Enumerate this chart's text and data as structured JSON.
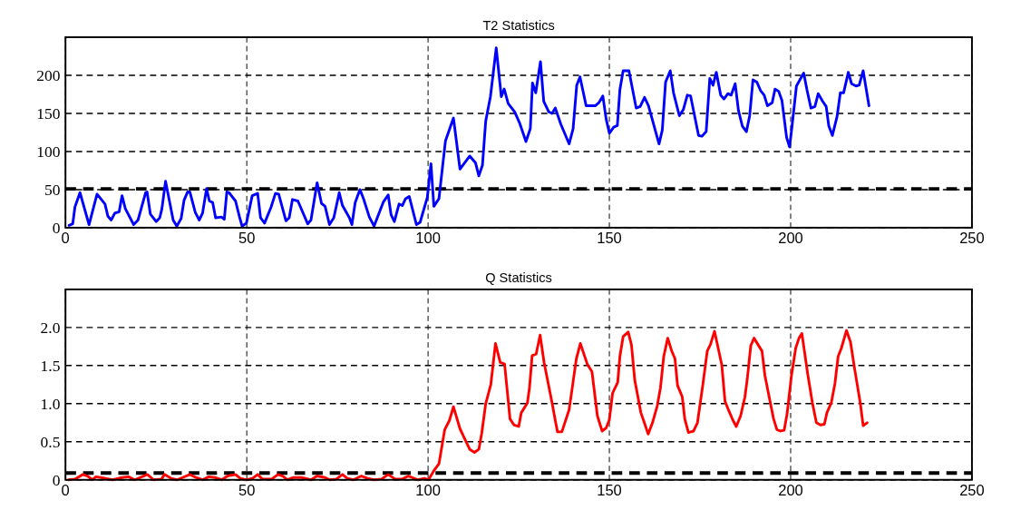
{
  "chart_data": [
    {
      "type": "line",
      "title": "T2 Statistics",
      "xlim": [
        0,
        250
      ],
      "xticks": [
        0,
        50,
        100,
        150,
        200,
        250
      ],
      "ylim": [
        0,
        250
      ],
      "yticks": [
        0,
        50,
        100,
        150,
        200
      ],
      "grid": true,
      "line_style": "solid",
      "marker": "none",
      "ref_lines": [
        {
          "axis": "y",
          "value": 51,
          "color": "#000000",
          "line_style": "dashed"
        }
      ],
      "series": [
        {
          "color": "#0000ff",
          "x": [
            1,
            2,
            2.6,
            4,
            6.5,
            8.7,
            10.9,
            11.7,
            12.6,
            13.6,
            14.8,
            15.6,
            16.5,
            18.8,
            20,
            22.1,
            22.5,
            23.4,
            25,
            26,
            26.6,
            27.6,
            29.7,
            30.7,
            31.9,
            32.7,
            33.7,
            34.3,
            35.8,
            36.9,
            37.8,
            38.9,
            39.7,
            40.6,
            41.4,
            43,
            43.8,
            44.5,
            45.1,
            46.9,
            48,
            48.7,
            49.9,
            51.5,
            53,
            53.8,
            54.9,
            56.7,
            57.9,
            58.8,
            60.8,
            61.7,
            62.6,
            64.1,
            66.8,
            67.7,
            69.4,
            70.6,
            71.6,
            72.8,
            74,
            75.5,
            76.4,
            78.3,
            79,
            79.9,
            81.2,
            82.2,
            83.8,
            85.1,
            87.7,
            89,
            89.8,
            90.7,
            92,
            92.9,
            93.8,
            94.8,
            96.8,
            97.8,
            99.8,
            100.8,
            101.6,
            103,
            104.8,
            107,
            108.8,
            111.5,
            113.1,
            114,
            115,
            115.9,
            117.2,
            118.8,
            120.2,
            121,
            122.1,
            123.9,
            125.2,
            127,
            128.2,
            128.8,
            129.7,
            131,
            131.9,
            133.3,
            134.2,
            135.1,
            136.6,
            138.9,
            140,
            141,
            141.9,
            143.6,
            146.1,
            147.1,
            148.2,
            149.1,
            150,
            151.2,
            152.2,
            152.9,
            153.8,
            155.4,
            157.4,
            158.5,
            159.7,
            160.8,
            163.7,
            164.6,
            165.5,
            166.8,
            167.7,
            169.3,
            170.4,
            171.5,
            172.4,
            174.6,
            175.5,
            176.7,
            177.7,
            178.6,
            179.5,
            180.7,
            181.6,
            182.7,
            183.6,
            184.7,
            185.6,
            186.7,
            187.8,
            188.7,
            189.6,
            190.7,
            191.7,
            192.7,
            193.6,
            194.9,
            195.7,
            196.7,
            197.6,
            198.9,
            199.7,
            200.3,
            201.6,
            203.6,
            204.5,
            205.6,
            206.7,
            207.6,
            208.8,
            209.8,
            210.5,
            211.5,
            212.8,
            213.7,
            214.6,
            215.9,
            216.8,
            218,
            218.9,
            220,
            221.6
          ],
          "values": [
            3,
            5,
            27,
            46,
            4,
            44,
            31,
            15,
            10,
            19,
            21,
            42,
            25,
            4,
            10,
            46,
            47,
            18,
            8,
            13,
            25,
            61,
            10,
            2,
            12,
            36,
            47,
            47,
            20,
            10,
            19,
            51,
            35,
            33,
            13,
            14,
            11,
            47,
            46,
            35,
            14,
            2,
            6,
            42,
            45,
            13,
            6,
            27,
            45,
            44,
            9,
            13,
            37,
            35,
            5,
            10,
            59,
            32,
            28,
            4,
            13,
            46,
            29,
            13,
            4,
            33,
            50,
            38,
            14,
            2,
            34,
            43,
            17,
            8,
            31,
            29,
            38,
            41,
            4,
            7,
            40,
            84,
            28,
            38,
            114,
            144,
            77,
            94,
            85,
            68,
            82,
            140,
            172,
            236,
            172,
            182,
            163,
            152,
            138,
            113,
            130,
            190,
            177,
            218,
            166,
            152,
            150,
            157,
            136,
            110,
            130,
            187,
            198,
            160,
            160,
            164,
            173,
            143,
            124,
            132,
            134,
            181,
            206,
            206,
            157,
            159,
            171,
            160,
            110,
            128,
            191,
            206,
            177,
            147,
            155,
            174,
            173,
            121,
            120,
            126,
            196,
            187,
            204,
            174,
            169,
            176,
            174,
            189,
            154,
            133,
            126,
            147,
            194,
            191,
            180,
            174,
            160,
            164,
            182,
            179,
            167,
            118,
            106,
            130,
            186,
            203,
            181,
            157,
            159,
            176,
            166,
            159,
            134,
            121,
            146,
            177,
            177,
            204,
            189,
            186,
            187,
            206,
            160
          ]
        }
      ]
    },
    {
      "type": "line",
      "title": "Q Statistics",
      "xlim": [
        0,
        250
      ],
      "xticks": [
        0,
        50,
        100,
        150,
        200,
        250
      ],
      "ylim": [
        0,
        2.5
      ],
      "yticks": [
        0,
        {
          "value": 0.5,
          "label": "0.5"
        },
        {
          "value": 1,
          "label": "1.0"
        },
        {
          "value": 1.5,
          "label": "1.5"
        },
        {
          "value": 2,
          "label": "2.0"
        }
      ],
      "grid": true,
      "line_style": "solid",
      "marker": "none",
      "ref_lines": [
        {
          "axis": "y",
          "value": 0.09,
          "color": "#000000",
          "line_style": "dashed"
        }
      ],
      "series": [
        {
          "color": "#ff0000",
          "x": [
            0.9,
            2.6,
            4.8,
            6.1,
            7.4,
            8.4,
            10.9,
            13,
            15.6,
            17.4,
            19.1,
            22.6,
            24.3,
            26.5,
            27.3,
            29.1,
            30.8,
            34.3,
            36,
            37.8,
            39.5,
            41.2,
            43.1,
            44.7,
            46.9,
            48.2,
            49.9,
            51.6,
            53,
            54.3,
            56.9,
            58.6,
            59.9,
            61.2,
            62.9,
            65.1,
            67.7,
            69.4,
            71.6,
            72.9,
            74.7,
            76.4,
            77.7,
            79.4,
            81.6,
            83.3,
            85.1,
            87.2,
            89,
            90.9,
            92.9,
            94.6,
            97.2,
            99,
            100.1,
            101.6,
            103,
            104.6,
            105.9,
            107,
            108.8,
            110.2,
            111.5,
            112.8,
            114,
            114.8,
            115.9,
            117.3,
            118.6,
            119.9,
            121.1,
            122.6,
            123.7,
            125,
            125.7,
            127.4,
            128,
            128.7,
            129.8,
            130.9,
            132,
            134.2,
            135.2,
            135.7,
            136.9,
            138.9,
            139.8,
            140.9,
            142,
            143.9,
            145.2,
            146.7,
            148,
            149.1,
            150,
            150.9,
            152.3,
            152.9,
            153.8,
            155.2,
            156.1,
            157,
            158.7,
            159.8,
            160.7,
            161.9,
            163.2,
            164.1,
            165,
            166.1,
            167.2,
            168.1,
            168.8,
            170.1,
            170.8,
            171.8,
            173.2,
            174.3,
            175.7,
            177,
            177.9,
            179,
            180.1,
            181,
            181.9,
            183,
            184.1,
            185,
            186.2,
            187.4,
            188.1,
            189,
            189.9,
            192.1,
            192.9,
            194.4,
            195.3,
            196.2,
            197.1,
            198.2,
            199,
            200.2,
            201.4,
            202.3,
            203.1,
            204.7,
            206,
            207.1,
            208.2,
            209.3,
            210,
            211.2,
            212.2,
            213.1,
            214,
            215.4,
            216.5,
            217.6,
            219.2,
            220,
            221.1
          ],
          "values": [
            0,
            0.01,
            0.07,
            0.05,
            0,
            0.04,
            0.02,
            0,
            0.03,
            0.04,
            0,
            0.07,
            0,
            0.01,
            0.07,
            0.02,
            0,
            0.07,
            0.03,
            0,
            0.04,
            0.03,
            0,
            0.05,
            0.07,
            0.02,
            0,
            0.02,
            0.07,
            0.01,
            0.01,
            0.07,
            0.05,
            0,
            0.03,
            0.03,
            0,
            0.05,
            0.03,
            0,
            0.01,
            0.07,
            0.02,
            0,
            0.05,
            0.02,
            0,
            0.01,
            0.07,
            0.01,
            0.01,
            0.05,
            0,
            0.02,
            0,
            0.12,
            0.21,
            0.66,
            0.78,
            0.96,
            0.67,
            0.53,
            0.4,
            0.36,
            0.4,
            0.61,
            1,
            1.25,
            1.79,
            1.54,
            1.52,
            0.8,
            0.72,
            0.7,
            0.88,
            1.01,
            1.22,
            1.63,
            1.65,
            1.9,
            1.54,
            1.01,
            0.75,
            0.63,
            0.63,
            0.92,
            1.22,
            1.59,
            1.79,
            1.52,
            1.42,
            0.84,
            0.64,
            0.68,
            0.79,
            1.14,
            1.28,
            1.62,
            1.88,
            1.94,
            1.77,
            1.31,
            0.88,
            0.73,
            0.6,
            0.75,
            0.97,
            1.21,
            1.62,
            1.86,
            1.69,
            1.59,
            1.24,
            1.09,
            0.8,
            0.62,
            0.64,
            0.75,
            1.22,
            1.69,
            1.78,
            1.95,
            1.71,
            1.51,
            1.03,
            0.9,
            0.78,
            0.7,
            0.84,
            1.09,
            1.35,
            1.76,
            1.86,
            1.69,
            1.37,
            1.01,
            0.8,
            0.66,
            0.64,
            0.65,
            0.86,
            1.36,
            1.73,
            1.86,
            1.92,
            1.39,
            1.01,
            0.75,
            0.72,
            0.73,
            0.88,
            1.01,
            1.26,
            1.62,
            1.73,
            1.96,
            1.81,
            1.47,
            1.01,
            0.71,
            0.75
          ]
        }
      ]
    }
  ]
}
